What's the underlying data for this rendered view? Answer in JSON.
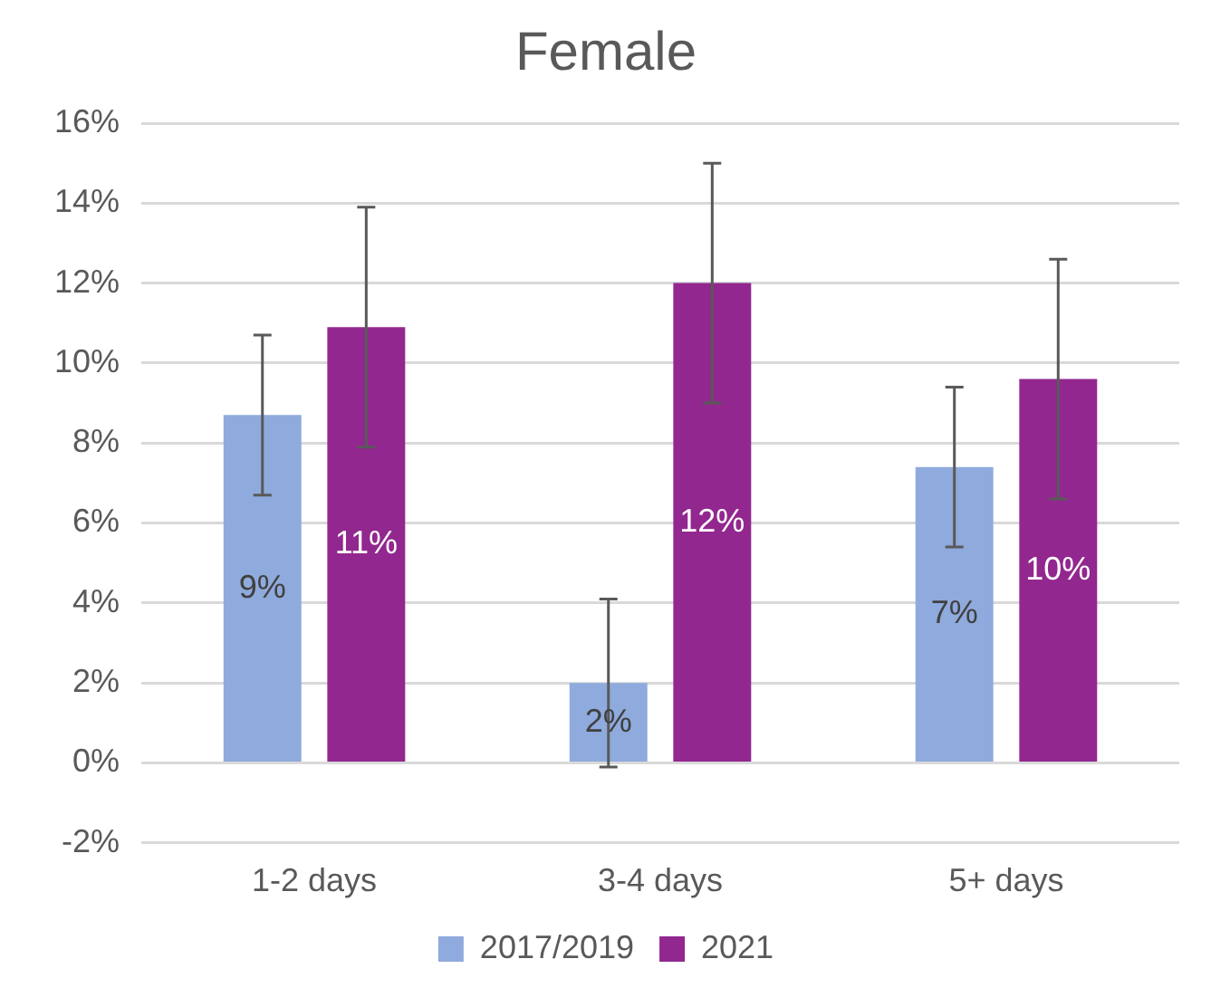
{
  "chart_data": {
    "type": "bar",
    "title": "Female",
    "categories": [
      "1-2 days",
      "3-4 days",
      "5+ days"
    ],
    "series": [
      {
        "name": "2017/2019",
        "color": "#8faadc",
        "values": [
          8.7,
          2.0,
          7.4
        ],
        "errors": [
          2,
          2.1,
          2
        ],
        "value_labels": [
          "9%",
          "2%",
          "7%"
        ]
      },
      {
        "name": "2021",
        "color": "#92278f",
        "values": [
          10.9,
          12.0,
          9.6
        ],
        "errors": [
          3,
          3,
          3
        ],
        "value_labels": [
          "11%",
          "12%",
          "10%"
        ]
      }
    ],
    "ylim": [
      -2,
      16
    ],
    "yticks": [
      {
        "value": -2,
        "label": "-2%"
      },
      {
        "value": 0,
        "label": "0%"
      },
      {
        "value": 2,
        "label": "2%"
      },
      {
        "value": 4,
        "label": "4%"
      },
      {
        "value": 6,
        "label": "6%"
      },
      {
        "value": 8,
        "label": "8%"
      },
      {
        "value": 10,
        "label": "10%"
      },
      {
        "value": 12,
        "label": "12%"
      },
      {
        "value": 14,
        "label": "14%"
      },
      {
        "value": 16,
        "label": "16%"
      }
    ],
    "grid": "y",
    "legend": "bottom"
  }
}
